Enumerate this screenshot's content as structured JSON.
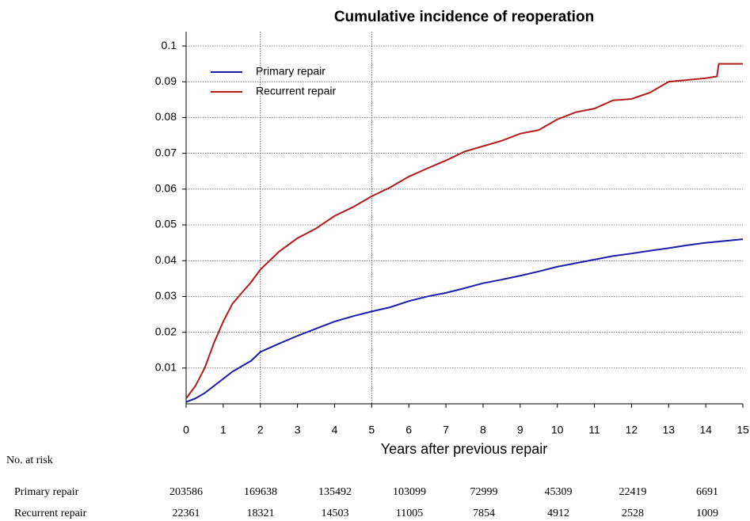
{
  "chart_data": {
    "type": "line",
    "title": "Cumulative incidence of reoperation",
    "x_label": "Years after previous repair",
    "xlim": [
      0,
      15
    ],
    "xticks": [
      0,
      1,
      2,
      3,
      4,
      5,
      6,
      7,
      8,
      9,
      10,
      11,
      12,
      13,
      14,
      15
    ],
    "ylim": [
      0,
      0.104
    ],
    "yticks": [
      0.01,
      0.02,
      0.03,
      0.04,
      0.05,
      0.06,
      0.07,
      0.08,
      0.09,
      0.1
    ],
    "grid": true,
    "vertical_lines": [
      2,
      5
    ],
    "legend": "top-left",
    "series": [
      {
        "name": "Primary repair",
        "color": "#1c1caa",
        "x": [
          0,
          0.25,
          0.5,
          0.75,
          1,
          1.25,
          1.5,
          1.75,
          2,
          2.5,
          3,
          3.5,
          4,
          4.5,
          5,
          5.5,
          6,
          6.5,
          7,
          7.5,
          8,
          8.5,
          9,
          9.5,
          10,
          10.5,
          11,
          11.5,
          12,
          12.5,
          13,
          13.5,
          14,
          14.5,
          15
        ],
        "values": [
          0.0005,
          0.0015,
          0.003,
          0.005,
          0.007,
          0.009,
          0.0105,
          0.012,
          0.0145,
          0.0168,
          0.019,
          0.021,
          0.023,
          0.0245,
          0.0258,
          0.027,
          0.0287,
          0.03,
          0.031,
          0.0323,
          0.0337,
          0.0347,
          0.0358,
          0.037,
          0.0383,
          0.0393,
          0.0403,
          0.0413,
          0.042,
          0.0428,
          0.0435,
          0.0443,
          0.045,
          0.0455,
          0.046
        ]
      },
      {
        "name": "Recurrent repair",
        "color": "#b31b1b",
        "x": [
          0,
          0.25,
          0.5,
          0.75,
          1,
          1.25,
          1.5,
          1.75,
          2,
          2.5,
          3,
          3.5,
          4,
          4.5,
          5,
          5.5,
          6,
          6.5,
          7,
          7.5,
          8,
          8.5,
          9,
          9.5,
          10,
          10.5,
          11,
          11.5,
          12,
          12.5,
          13,
          13.5,
          14,
          14.3,
          14.35,
          15
        ],
        "values": [
          0.0015,
          0.005,
          0.01,
          0.017,
          0.023,
          0.028,
          0.031,
          0.034,
          0.0375,
          0.0425,
          0.0463,
          0.049,
          0.0525,
          0.055,
          0.058,
          0.0605,
          0.0635,
          0.0658,
          0.068,
          0.0705,
          0.072,
          0.0735,
          0.0755,
          0.0765,
          0.0795,
          0.0815,
          0.0825,
          0.0848,
          0.0852,
          0.087,
          0.09,
          0.0905,
          0.091,
          0.0915,
          0.095,
          0.095
        ]
      }
    ],
    "risk_table": {
      "title": "No. at risk",
      "rows": [
        {
          "label": "Primary repair",
          "values": [
            203586,
            169638,
            135492,
            103099,
            72999,
            45309,
            22419,
            6691
          ]
        },
        {
          "label": "Recurrent repair",
          "values": [
            22361,
            18321,
            14503,
            11005,
            7854,
            4912,
            2528,
            1009
          ]
        }
      ]
    }
  }
}
